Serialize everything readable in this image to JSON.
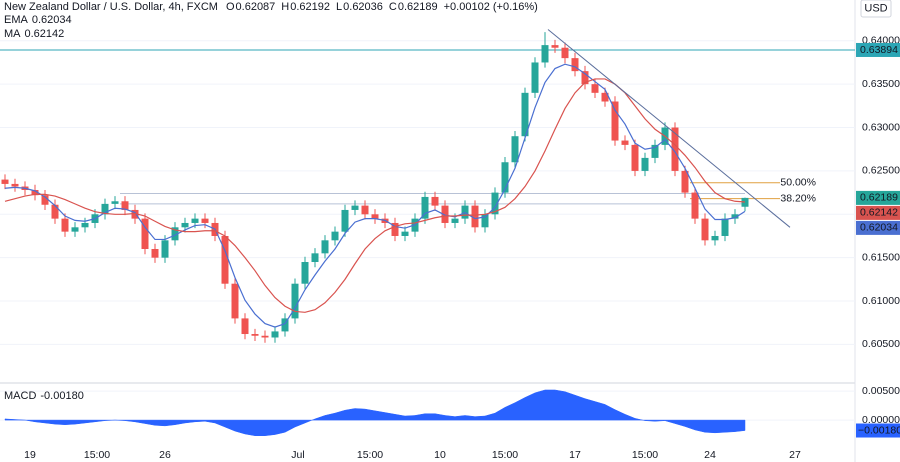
{
  "chart_data": [
    {
      "type": "candlestick",
      "title": "New Zealand Dollar / U.S. Dollar, 4h, FXCM",
      "ohlc_header": [
        {
          "label": "O",
          "value": 0.62087
        },
        {
          "label": "H",
          "value": 0.62192
        },
        {
          "label": "L",
          "value": 0.62036
        },
        {
          "label": "C",
          "value": 0.62189
        }
      ],
      "change": "+0.00102 (+0.16%)",
      "currency": "USD",
      "up_color": "#26a69a",
      "down_color": "#ef5350",
      "open": [
        0.624,
        0.6235,
        0.6232,
        0.6228,
        0.6222,
        0.6211,
        0.6195,
        0.618,
        0.6185,
        0.619,
        0.62,
        0.6212,
        0.6215,
        0.6205,
        0.6195,
        0.616,
        0.615,
        0.617,
        0.6185,
        0.619,
        0.6195,
        0.619,
        0.6175,
        0.612,
        0.608,
        0.6062,
        0.606,
        0.6058,
        0.6065,
        0.608,
        0.612,
        0.6145,
        0.6155,
        0.617,
        0.618,
        0.6205,
        0.621,
        0.62,
        0.6195,
        0.619,
        0.6175,
        0.618,
        0.6195,
        0.622,
        0.621,
        0.619,
        0.6195,
        0.621,
        0.6185,
        0.62,
        0.6225,
        0.626,
        0.629,
        0.634,
        0.6375,
        0.6395,
        0.6392,
        0.638,
        0.6365,
        0.635,
        0.634,
        0.633,
        0.6285,
        0.628,
        0.625,
        0.6265,
        0.628,
        0.63,
        0.625,
        0.6225,
        0.6195,
        0.617,
        0.6175,
        0.6195,
        0.62087
      ],
      "high": [
        0.6246,
        0.6241,
        0.6238,
        0.6234,
        0.6228,
        0.6217,
        0.6201,
        0.6191,
        0.6196,
        0.6206,
        0.6218,
        0.6221,
        0.6221,
        0.6211,
        0.6201,
        0.6166,
        0.6176,
        0.6191,
        0.6196,
        0.6201,
        0.6201,
        0.6196,
        0.6181,
        0.6126,
        0.6086,
        0.6068,
        0.6066,
        0.6071,
        0.6086,
        0.6126,
        0.6151,
        0.6161,
        0.6176,
        0.6186,
        0.6211,
        0.6216,
        0.6216,
        0.6206,
        0.6201,
        0.6196,
        0.6186,
        0.6201,
        0.6226,
        0.6226,
        0.6216,
        0.6201,
        0.6216,
        0.6216,
        0.6206,
        0.6231,
        0.6266,
        0.6296,
        0.6346,
        0.6381,
        0.641,
        0.6401,
        0.6398,
        0.6386,
        0.6371,
        0.6356,
        0.6346,
        0.6336,
        0.6291,
        0.6286,
        0.6271,
        0.6286,
        0.6306,
        0.6306,
        0.6256,
        0.6231,
        0.6201,
        0.6181,
        0.6201,
        0.6206,
        0.62192
      ],
      "low": [
        0.6229,
        0.6226,
        0.6222,
        0.6216,
        0.6205,
        0.6189,
        0.6174,
        0.6174,
        0.6179,
        0.6184,
        0.6194,
        0.6206,
        0.6199,
        0.6189,
        0.6154,
        0.6144,
        0.6144,
        0.6164,
        0.6179,
        0.6184,
        0.6184,
        0.6169,
        0.6114,
        0.6074,
        0.6056,
        0.6054,
        0.6052,
        0.6052,
        0.6059,
        0.6074,
        0.6114,
        0.6139,
        0.6149,
        0.6164,
        0.6174,
        0.6199,
        0.6194,
        0.6189,
        0.6184,
        0.6169,
        0.6169,
        0.6174,
        0.6189,
        0.6204,
        0.6184,
        0.6184,
        0.6189,
        0.6179,
        0.6179,
        0.6194,
        0.6219,
        0.6254,
        0.6284,
        0.6334,
        0.6369,
        0.6386,
        0.6374,
        0.6359,
        0.6344,
        0.6334,
        0.6324,
        0.6279,
        0.6274,
        0.6244,
        0.6244,
        0.6259,
        0.6274,
        0.6244,
        0.6219,
        0.6189,
        0.6164,
        0.6164,
        0.6169,
        0.6189,
        0.62036
      ],
      "close": [
        0.6235,
        0.6232,
        0.6228,
        0.6222,
        0.6211,
        0.6195,
        0.618,
        0.6185,
        0.619,
        0.62,
        0.6212,
        0.6215,
        0.6205,
        0.6195,
        0.616,
        0.615,
        0.617,
        0.6185,
        0.619,
        0.6195,
        0.619,
        0.6175,
        0.612,
        0.608,
        0.6062,
        0.606,
        0.6058,
        0.6065,
        0.608,
        0.612,
        0.6145,
        0.6155,
        0.617,
        0.618,
        0.6205,
        0.621,
        0.62,
        0.6195,
        0.619,
        0.6175,
        0.618,
        0.6195,
        0.622,
        0.621,
        0.619,
        0.6195,
        0.621,
        0.6185,
        0.62,
        0.6225,
        0.626,
        0.629,
        0.634,
        0.6375,
        0.6395,
        0.6392,
        0.638,
        0.6365,
        0.635,
        0.634,
        0.633,
        0.6285,
        0.628,
        0.625,
        0.6265,
        0.628,
        0.63,
        0.625,
        0.6225,
        0.6195,
        0.617,
        0.6175,
        0.6195,
        0.62,
        0.62189
      ],
      "series": [
        {
          "name": "EMA",
          "color": "#4a6fd1",
          "values": [
            0.623,
            0.6231,
            0.623,
            0.6227,
            0.622,
            0.621,
            0.6198,
            0.6193,
            0.6192,
            0.6195,
            0.6202,
            0.6207,
            0.6206,
            0.6202,
            0.6185,
            0.6171,
            0.6171,
            0.6176,
            0.6182,
            0.6187,
            0.6188,
            0.6183,
            0.6158,
            0.6127,
            0.6101,
            0.6085,
            0.6074,
            0.607,
            0.6074,
            0.6092,
            0.6113,
            0.613,
            0.6146,
            0.616,
            0.6178,
            0.6191,
            0.6195,
            0.6195,
            0.6193,
            0.6186,
            0.6184,
            0.6188,
            0.6201,
            0.6205,
            0.6199,
            0.6197,
            0.6202,
            0.6195,
            0.6197,
            0.6208,
            0.6229,
            0.6253,
            0.6288,
            0.6323,
            0.6352,
            0.6368,
            0.6373,
            0.637,
            0.6362,
            0.6353,
            0.6344,
            0.632,
            0.6304,
            0.6282,
            0.6275,
            0.6277,
            0.6286,
            0.6272,
            0.6253,
            0.623,
            0.6206,
            0.6194,
            0.6194,
            0.6196,
            0.62034
          ]
        },
        {
          "name": "MA",
          "color": "#d9534f",
          "values": [
            0.6215,
            0.6218,
            0.6221,
            0.6223,
            0.6223,
            0.6221,
            0.6217,
            0.6212,
            0.6207,
            0.6203,
            0.6201,
            0.62,
            0.62,
            0.6201,
            0.6198,
            0.6192,
            0.6186,
            0.6182,
            0.618,
            0.618,
            0.6181,
            0.6181,
            0.6175,
            0.6164,
            0.615,
            0.6135,
            0.6118,
            0.6104,
            0.6094,
            0.6088,
            0.6087,
            0.609,
            0.6098,
            0.611,
            0.6125,
            0.6143,
            0.616,
            0.6172,
            0.6181,
            0.6186,
            0.6189,
            0.619,
            0.6193,
            0.6196,
            0.6198,
            0.6198,
            0.6199,
            0.6199,
            0.62,
            0.6203,
            0.6208,
            0.6218,
            0.6232,
            0.625,
            0.6273,
            0.6298,
            0.6322,
            0.634,
            0.6352,
            0.6356,
            0.6356,
            0.635,
            0.634,
            0.6325,
            0.631,
            0.6298,
            0.629,
            0.628,
            0.6268,
            0.6254,
            0.6238,
            0.6225,
            0.6218,
            0.6215,
            0.62142
          ]
        }
      ],
      "ylim": [
        0.6009,
        0.6447
      ],
      "yticks": [
        {
          "value": 0.605,
          "label": "0.60500"
        },
        {
          "value": 0.61,
          "label": "0.61000"
        },
        {
          "value": 0.615,
          "label": "0.61500"
        },
        {
          "value": 0.62,
          "label": "0.62000"
        },
        {
          "value": 0.625,
          "label": "0.62500"
        },
        {
          "value": 0.63,
          "label": "0.63000"
        },
        {
          "value": 0.635,
          "label": "0.63500"
        },
        {
          "value": 0.64,
          "label": "0.64000"
        }
      ],
      "hline": {
        "value": 0.63894,
        "color": "#2ca6b5"
      },
      "range_lines": {
        "x": [
          11.5,
          74
        ],
        "values": [
          0.6224,
          0.6212
        ],
        "color": "#b8c2d6"
      },
      "fib": {
        "color": "#e0a040",
        "x": [
          68.5,
          77.5
        ],
        "levels": [
          {
            "label": "50.00%",
            "value": 0.62364
          },
          {
            "label": "38.20%",
            "value": 0.6218
          }
        ]
      },
      "trendline": {
        "x": [
          54.3,
          78.5
        ],
        "y": [
          0.6413,
          0.6185
        ],
        "color": "#5a6e9c"
      },
      "x_labels": [
        {
          "label": "19",
          "index": 2.5
        },
        {
          "label": "15:00",
          "index": 9.2
        },
        {
          "label": "26",
          "index": 16
        },
        {
          "label": "Jul",
          "index": 29.3
        },
        {
          "label": "15:00",
          "index": 36.5
        },
        {
          "label": "10",
          "index": 43.5
        },
        {
          "label": "15:00",
          "index": 50
        },
        {
          "label": "17",
          "index": 57
        },
        {
          "label": "15:00",
          "index": 64
        },
        {
          "label": "24",
          "index": 70.5
        },
        {
          "label": "27",
          "index": 79
        }
      ]
    },
    {
      "type": "area",
      "series": [
        {
          "name": "MACD",
          "color": "#2962ff",
          "values": [
            0.0002,
            0.0001,
            0,
            -0.0003,
            -0.0005,
            -0.0007,
            -0.0008,
            -0.0007,
            -0.0005,
            -0.0003,
            -0.0001,
            0,
            -0.0001,
            -0.0003,
            -0.0006,
            -0.0009,
            -0.001,
            -0.0008,
            -0.0005,
            -0.0003,
            -0.0002,
            -0.0005,
            -0.0012,
            -0.0019,
            -0.0024,
            -0.0027,
            -0.0027,
            -0.0025,
            -0.0021,
            -0.0012,
            -0.0005,
            0.0002,
            0.0008,
            0.0012,
            0.0017,
            0.002,
            0.0019,
            0.0016,
            0.0013,
            0.001,
            0.0007,
            0.0008,
            0.0011,
            0.0011,
            0.0008,
            0.0006,
            0.0008,
            0.0006,
            0.0007,
            0.0012,
            0.0022,
            0.003,
            0.0039,
            0.0047,
            0.0052,
            0.0052,
            0.0049,
            0.0043,
            0.0037,
            0.0032,
            0.0027,
            0.0018,
            0.001,
            0.0003,
            -0.0001,
            -0.0002,
            -0.0001,
            -0.0006,
            -0.0011,
            -0.0017,
            -0.0021,
            -0.0022,
            -0.0021,
            -0.002,
            -0.0018
          ]
        }
      ],
      "value_labels": {
        "legend": "-0.00180",
        "tag": "−0.00180"
      },
      "ylim": [
        -0.0043,
        0.0064
      ],
      "yticks": [
        {
          "value": 0.005,
          "label": "0.00500"
        },
        {
          "value": 0,
          "label": "0.00000"
        }
      ]
    }
  ]
}
